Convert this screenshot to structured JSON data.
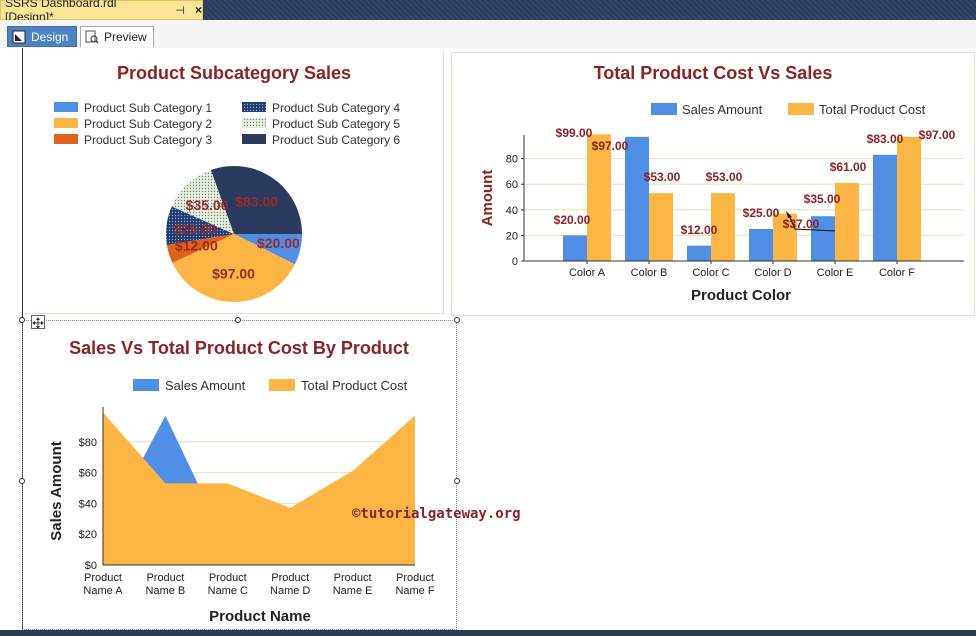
{
  "window": {
    "doc_tab_label": "SSRS Dashboard.rdl [Design]*",
    "pin_glyph": "⊣",
    "close_glyph": "×"
  },
  "view_tabs": {
    "design": "Design",
    "preview": "Preview"
  },
  "watermark": "©tutorialgateway.org",
  "colors": {
    "blue": "#4f8fe6",
    "orange": "#fdb543",
    "dark_red": "#8b2323",
    "navy": "#2a3b5e"
  },
  "pie_chart": {
    "title": "Product Subcategory Sales",
    "legend": [
      {
        "label": "Product Sub Category 1",
        "color": "#4f8fe6",
        "pattern": "solid"
      },
      {
        "label": "Product Sub Category 4",
        "color": "#1e3a6e",
        "pattern": "dots"
      },
      {
        "label": "Product Sub Category 2",
        "color": "#fdb543",
        "pattern": "solid"
      },
      {
        "label": "Product Sub Category 5",
        "color": "#dce9d2",
        "pattern": "dots"
      },
      {
        "label": "Product Sub Category 3",
        "color": "#e0611b",
        "pattern": "solid"
      },
      {
        "label": "Product Sub Category 6",
        "color": "#2a3b5e",
        "pattern": "solid"
      }
    ]
  },
  "chart_data": [
    {
      "type": "pie",
      "title": "Product Subcategory Sales",
      "slices": [
        {
          "name": "Product Sub Category 1",
          "value": 20,
          "label": "$20.00"
        },
        {
          "name": "Product Sub Category 2",
          "value": 97,
          "label": "$97.00"
        },
        {
          "name": "Product Sub Category 3",
          "value": 12,
          "label": "$12.00"
        },
        {
          "name": "Product Sub Category 4",
          "value": 25,
          "label": "$25.00"
        },
        {
          "name": "Product Sub Category 5",
          "value": 35,
          "label": "$35.00"
        },
        {
          "name": "Product Sub Category 6",
          "value": 83,
          "label": "$83.00"
        }
      ]
    },
    {
      "type": "bar",
      "title": "Total Product Cost Vs Sales",
      "categories": [
        "Color A",
        "Color B",
        "Color C",
        "Color D",
        "Color E",
        "Color F"
      ],
      "series": [
        {
          "name": "Sales Amount",
          "values": [
            20,
            97,
            12,
            25,
            35,
            83
          ],
          "labels": [
            "$20.00",
            "$97.00",
            "$12.00",
            "$25.00",
            "$35.00",
            "$83.00"
          ]
        },
        {
          "name": "Total Product Cost",
          "values": [
            99,
            53,
            53,
            37,
            61,
            97
          ],
          "labels": [
            "$99.00",
            "$53.00",
            "$53.00",
            "$37.00",
            "$61.00",
            "$97.00"
          ]
        }
      ],
      "xlabel": "Product Color",
      "ylabel": "Amount",
      "ylim": [
        0,
        100
      ],
      "yticks": [
        0,
        20,
        40,
        60,
        80
      ],
      "grid": true,
      "legend": "top"
    },
    {
      "type": "area",
      "title": "Sales Vs Total Product Cost By Product",
      "categories": [
        "Product Name A",
        "Product Name B",
        "Product Name C",
        "Product Name D",
        "Product Name E",
        "Product Name F"
      ],
      "category_lines": [
        [
          "Product",
          "Name A"
        ],
        [
          "Product",
          "Name B"
        ],
        [
          "Product",
          "Name C"
        ],
        [
          "Product",
          "Name D"
        ],
        [
          "Product",
          "Name E"
        ],
        [
          "Product",
          "Name F"
        ]
      ],
      "series": [
        {
          "name": "Sales Amount",
          "values": [
            20,
            97,
            12,
            25,
            35,
            83
          ]
        },
        {
          "name": "Total Product Cost",
          "values": [
            99,
            53,
            53,
            37,
            61,
            97
          ]
        }
      ],
      "xlabel": "Product Name",
      "ylabel": "Sales Amount",
      "ylim": [
        0,
        100
      ],
      "yticks": [
        0,
        20,
        40,
        60,
        80
      ],
      "ytick_labels": [
        "$0",
        "$20",
        "$40",
        "$60",
        "$80"
      ],
      "grid": true,
      "legend": "top"
    }
  ]
}
